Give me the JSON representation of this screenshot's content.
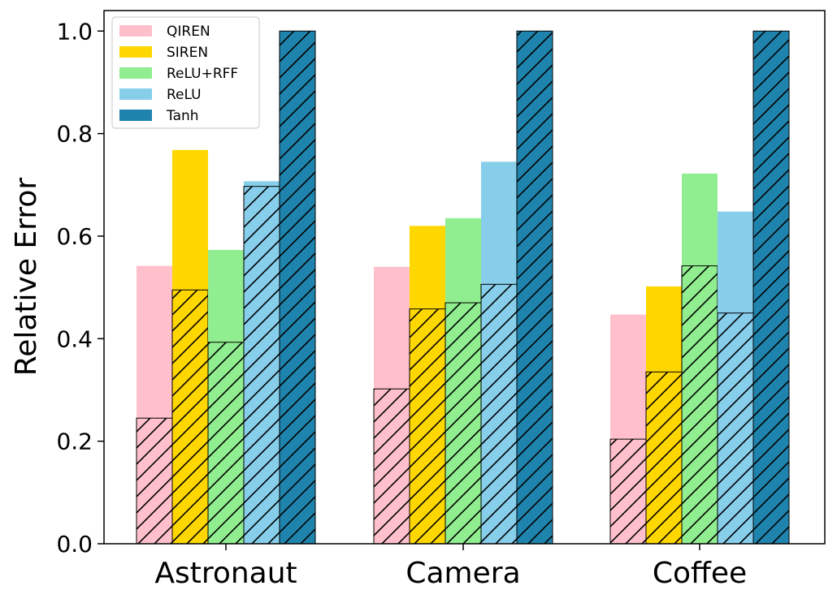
{
  "chart_data": {
    "type": "bar",
    "title": "",
    "xlabel": "",
    "ylabel": "Relative Error",
    "ylim": [
      0,
      1.04
    ],
    "yticks": [
      "0.0",
      "0.2",
      "0.4",
      "0.6",
      "0.8",
      "1.0"
    ],
    "grid": false,
    "legend_position": "top-left",
    "stacked_overlay_note": "hatched portion",
    "categories": [
      "Astronaut",
      "Camera",
      "Coffee"
    ],
    "series": [
      {
        "name": "QIREN",
        "color": "#ffc0cb",
        "values": [
          0.542,
          0.54,
          0.447
        ],
        "hatched_values": [
          0.245,
          0.302,
          0.204
        ]
      },
      {
        "name": "SIREN",
        "color": "#ffd700",
        "values": [
          0.768,
          0.62,
          0.502
        ],
        "hatched_values": [
          0.495,
          0.458,
          0.335
        ]
      },
      {
        "name": "ReLU+RFF",
        "color": "#90ee90",
        "values": [
          0.573,
          0.635,
          0.722
        ],
        "hatched_values": [
          0.393,
          0.47,
          0.542
        ]
      },
      {
        "name": "ReLU",
        "color": "#87ceeb",
        "values": [
          0.707,
          0.745,
          0.648
        ],
        "hatched_values": [
          0.697,
          0.506,
          0.45
        ]
      },
      {
        "name": "Tanh",
        "color": "#1f84ad",
        "values": [
          1.0,
          1.0,
          1.0
        ],
        "hatched_values": [
          1.0,
          1.0,
          1.0
        ]
      }
    ]
  }
}
